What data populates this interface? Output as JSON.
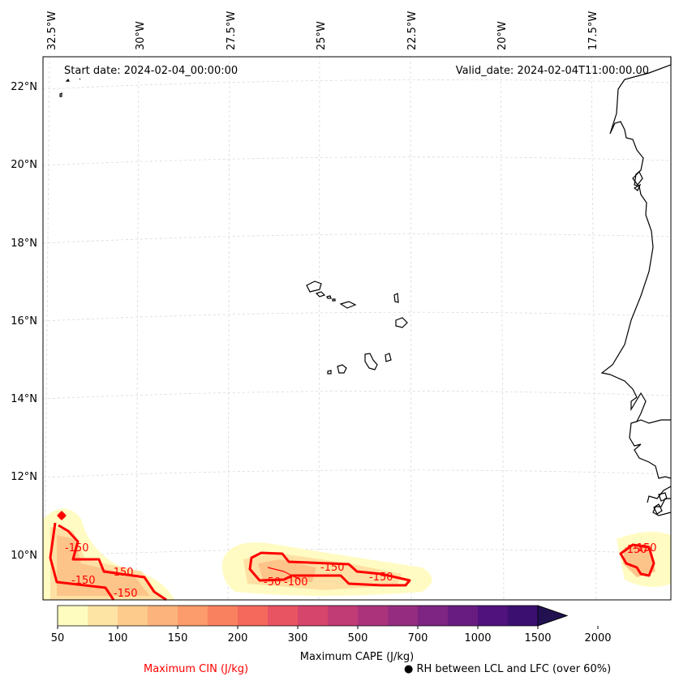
{
  "header": {
    "start_date": "Start date: 2024-02-04_00:00:00",
    "valid_date": "Valid_date: 2024-02-04T11:00:00.00"
  },
  "axes": {
    "lon_labels": [
      "32.5°W",
      "30°W",
      "27.5°W",
      "25°W",
      "22.5°W",
      "20°W",
      "17.5°W"
    ],
    "lat_labels": [
      "22°N",
      "20°N",
      "18°N",
      "16°N",
      "14°N",
      "12°N",
      "10°N"
    ]
  },
  "colorbar": {
    "label": "Maximum CAPE (J/kg)",
    "ticks": [
      "50",
      "100",
      "150",
      "200",
      "300",
      "500",
      "700",
      "1000",
      "1500",
      "2000"
    ],
    "colors": [
      "#fefdbf",
      "#fee4a4",
      "#fdcb8b",
      "#fdb47c",
      "#fc9b6b",
      "#fa815f",
      "#f4695c",
      "#e85462",
      "#d6456c",
      "#c13b75",
      "#ab337c",
      "#952c80",
      "#7e2482",
      "#681c81",
      "#50127c",
      "#3a0f6f",
      "#221150"
    ]
  },
  "contours": {
    "cin_labels": [
      "-150",
      "-150",
      "-150",
      "-150",
      "-150",
      "-50",
      "-100",
      "-150",
      "-150",
      "-150"
    ]
  },
  "legend": {
    "cin": "Maximum CIN (J/kg)",
    "rh": "RH between LCL and LFC (over 60%)",
    "rh_marker": "●",
    "cin_color": "#ff0000"
  }
}
